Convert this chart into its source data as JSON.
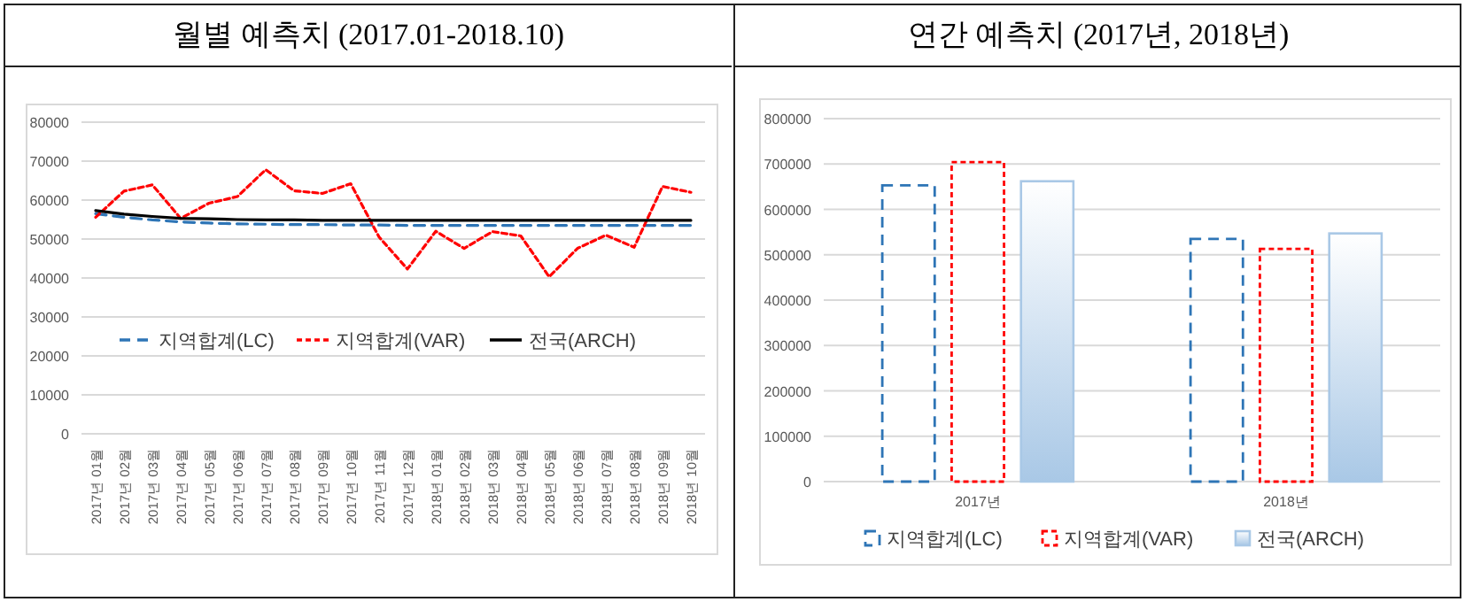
{
  "chart_data": [
    {
      "type": "line",
      "title": "월별 예측치 (2017.01-2018.10)",
      "categories": [
        "2017년 01월",
        "2017년 02월",
        "2017년 03월",
        "2017년 04월",
        "2017년 05월",
        "2017년 06월",
        "2017년 07월",
        "2017년 08월",
        "2017년 09월",
        "2017년 10월",
        "2017년 11월",
        "2017년 12월",
        "2018년 01월",
        "2018년 02월",
        "2018년 03월",
        "2018년 04월",
        "2018년 05월",
        "2018년 06월",
        "2018년 07월",
        "2018년 08월",
        "2018년 09월",
        "2018년 10월"
      ],
      "series": [
        {
          "name": "지역합계(LC)",
          "color": "#2e75b6",
          "line_style": "dashed",
          "values": [
            56500,
            55600,
            54900,
            54400,
            54100,
            53900,
            53800,
            53700,
            53700,
            53600,
            53600,
            53500,
            53500,
            53500,
            53500,
            53500,
            53500,
            53500,
            53500,
            53500,
            53500,
            53500
          ]
        },
        {
          "name": "지역합계(VAR)",
          "color": "#ff0000",
          "line_style": "dotted",
          "values": [
            55600,
            62300,
            63900,
            55300,
            59200,
            60900,
            67800,
            62400,
            61700,
            64200,
            50500,
            42300,
            52000,
            47600,
            51900,
            50800,
            40300,
            47600,
            51000,
            47900,
            63500,
            62000
          ]
        },
        {
          "name": "전국(ARCH)",
          "color": "#000000",
          "line_style": "solid",
          "values": [
            57300,
            56400,
            55800,
            55300,
            55200,
            55000,
            54900,
            54900,
            54800,
            54800,
            54800,
            54800,
            54800,
            54800,
            54800,
            54800,
            54800,
            54800,
            54800,
            54800,
            54800,
            54800
          ]
        }
      ],
      "ylim": [
        0,
        80000
      ],
      "yticks": [
        0,
        10000,
        20000,
        30000,
        40000,
        50000,
        60000,
        70000,
        80000
      ],
      "grid": "y",
      "legend": "bottom"
    },
    {
      "type": "bar",
      "title": "연간 예측치 (2017년, 2018년)",
      "categories": [
        "2017년",
        "2018년"
      ],
      "series": [
        {
          "name": "지역합계(LC)",
          "color": "#2e75b6",
          "line_style": "dashed",
          "values": [
            653000,
            535000
          ]
        },
        {
          "name": "지역합계(VAR)",
          "color": "#ff0000",
          "line_style": "dotted",
          "values": [
            704000,
            513000
          ]
        },
        {
          "name": "전국(ARCH)",
          "color": "#a9c8e6",
          "line_style": "solid",
          "values": [
            662000,
            547000
          ]
        }
      ],
      "ylim": [
        0,
        800000
      ],
      "yticks": [
        0,
        100000,
        200000,
        300000,
        400000,
        500000,
        600000,
        700000,
        800000
      ],
      "grid": "y",
      "legend": "bottom"
    }
  ]
}
